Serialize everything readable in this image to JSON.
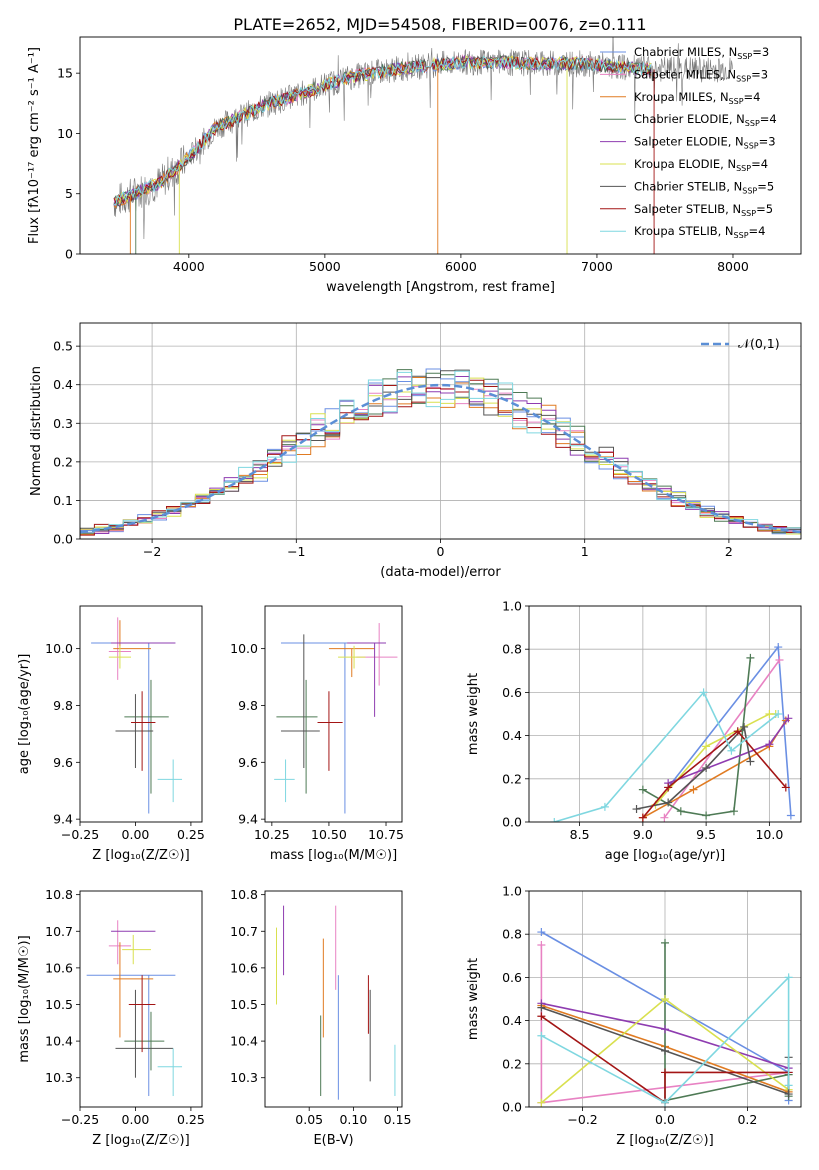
{
  "figure": {
    "title": "PLATE=2652, MJD=54508, FIBERID=0076, z=0.111"
  },
  "colors": {
    "Chabrier MILES": "#6a8fe3",
    "Salpeter MILES": "#e882c3",
    "Kroupa MILES": "#e07b22",
    "Chabrier ELODIE": "#4e7a55",
    "Salpeter ELODIE": "#8e3cb0",
    "Kroupa ELODIE": "#d9e04f",
    "Chabrier STELIB": "#545454",
    "Salpeter STELIB": "#a31515",
    "Kroupa STELIB": "#7fd7e0",
    "grid": "#b0b0b0",
    "normal_curve": "#5b8fd6"
  },
  "chart_data": [
    {
      "id": "spectrum",
      "type": "line",
      "title": "PLATE=2652, MJD=54508, FIBERID=0076, z=0.111",
      "xlabel": "wavelength [Angstrom, rest frame]",
      "ylabel": "Flux [fλ10⁻¹⁷ erg cm⁻² s⁻¹ A⁻¹]",
      "xlim": [
        3200,
        8500
      ],
      "ylim": [
        0,
        18
      ],
      "xticks": [
        "4000",
        "5000",
        "6000",
        "7000",
        "8000"
      ],
      "yticks": [
        "0",
        "5",
        "10",
        "15"
      ],
      "legend_position": "right",
      "legend": [
        {
          "model": "Chabrier MILES",
          "label": "Chabrier MILES, N",
          "sub": "SSP",
          "tail": "=3"
        },
        {
          "model": "Salpeter MILES",
          "label": "Salpeter MILES, N",
          "sub": "SSP",
          "tail": "=3"
        },
        {
          "model": "Kroupa MILES",
          "label": "Kroupa MILES, N",
          "sub": "SSP",
          "tail": "=4"
        },
        {
          "model": "Chabrier ELODIE",
          "label": "Chabrier ELODIE, N",
          "sub": "SSP",
          "tail": "=4"
        },
        {
          "model": "Salpeter ELODIE",
          "label": "Salpeter ELODIE, N",
          "sub": "SSP",
          "tail": "=3"
        },
        {
          "model": "Kroupa ELODIE",
          "label": "Kroupa ELODIE, N",
          "sub": "SSP",
          "tail": "=4"
        },
        {
          "model": "Chabrier STELIB",
          "label": "Chabrier STELIB, N",
          "sub": "SSP",
          "tail": "=5"
        },
        {
          "model": "Salpeter STELIB",
          "label": "Salpeter STELIB, N",
          "sub": "SSP",
          "tail": "=5"
        },
        {
          "model": "Kroupa STELIB",
          "label": "Kroupa STELIB, N",
          "sub": "SSP",
          "tail": "=4"
        }
      ],
      "continuum": {
        "x": [
          3450,
          3600,
          3800,
          4000,
          4200,
          4400,
          4600,
          4800,
          5000,
          5200,
          5500,
          5800,
          6000,
          6300,
          6600,
          6900,
          7200,
          7400
        ],
        "y": [
          4.3,
          5.0,
          6.0,
          8.0,
          10.5,
          11.5,
          12.5,
          13.2,
          14.0,
          14.7,
          15.3,
          15.7,
          15.9,
          15.9,
          15.8,
          15.8,
          15.5,
          15.3
        ]
      },
      "models_x_range": [
        3450,
        8000
      ]
    },
    {
      "id": "residuals",
      "type": "histogram",
      "xlabel": "(data-model)/error",
      "ylabel": "Normed distribution",
      "xlim": [
        -2.5,
        2.5
      ],
      "ylim": [
        0,
        0.56
      ],
      "xticks": [
        "−2",
        "−1",
        "0",
        "1",
        "2"
      ],
      "yticks": [
        "0.0",
        "0.1",
        "0.2",
        "0.3",
        "0.4",
        "0.5"
      ],
      "legend_position": "top-right",
      "legend": [
        {
          "label": "𝒩(0,1)"
        }
      ],
      "bin_width": 0.1,
      "reference_curve": "gaussian mean 0 sigma 1"
    },
    {
      "id": "age-vs-Z",
      "type": "scatter",
      "xlabel": "Z [log₁₀(Z/Z☉)]",
      "ylabel": "age  [log₁₀(age/yr)]",
      "xlim": [
        -0.25,
        0.3
      ],
      "ylim": [
        9.39,
        10.15
      ],
      "xticks": [
        "−0.25",
        "0.00",
        "0.25"
      ],
      "yticks": [
        "9.4",
        "9.6",
        "9.8",
        "10.0"
      ],
      "points": [
        {
          "model": "Chabrier MILES",
          "x": 0.06,
          "y": 10.02,
          "xerr": [
            0.26,
            0.12
          ],
          "yerr": [
            0.6,
            0.0
          ]
        },
        {
          "model": "Salpeter MILES",
          "x": -0.08,
          "y": 9.99,
          "xerr": [
            0.04,
            0.06
          ],
          "yerr": [
            0.1,
            0.12
          ]
        },
        {
          "model": "Kroupa MILES",
          "x": -0.07,
          "y": 10.0,
          "xerr": [
            0.03,
            0.14
          ],
          "yerr": [
            0.0,
            0.1
          ]
        },
        {
          "model": "Chabrier ELODIE",
          "x": 0.07,
          "y": 9.76,
          "xerr": [
            0.12,
            0.08
          ],
          "yerr": [
            0.27,
            0.13
          ]
        },
        {
          "model": "Salpeter ELODIE",
          "x": 0.0,
          "y": 10.02,
          "xerr": [
            0.11,
            0.18
          ],
          "yerr": [
            0.0,
            0.0
          ]
        },
        {
          "model": "Kroupa ELODIE",
          "x": -0.07,
          "y": 9.97,
          "xerr": [
            0.05,
            0.05
          ],
          "yerr": [
            0.04,
            0.04
          ]
        },
        {
          "model": "Chabrier STELIB",
          "x": 0.0,
          "y": 9.71,
          "xerr": [
            0.09,
            0.08
          ],
          "yerr": [
            0.13,
            0.13
          ]
        },
        {
          "model": "Salpeter STELIB",
          "x": 0.03,
          "y": 9.74,
          "xerr": [
            0.05,
            0.06
          ],
          "yerr": [
            0.17,
            0.11
          ]
        },
        {
          "model": "Kroupa STELIB",
          "x": 0.17,
          "y": 9.54,
          "xerr": [
            0.07,
            0.04
          ],
          "yerr": [
            0.08,
            0.07
          ]
        }
      ]
    },
    {
      "id": "age-vs-mass",
      "type": "scatter",
      "xlabel": "mass [log₁₀(M/M☉)]",
      "ylabel": "",
      "xlim": [
        10.22,
        10.82
      ],
      "ylim": [
        9.39,
        10.15
      ],
      "xticks": [
        "10.25",
        "10.50",
        "10.75"
      ],
      "yticks": [
        "9.4",
        "9.6",
        "9.8",
        "10.0"
      ],
      "points": [
        {
          "model": "Chabrier MILES",
          "x": 10.57,
          "y": 10.02,
          "xerr": [
            0.28,
            0.13
          ],
          "yerr": [
            0.6,
            0.0
          ]
        },
        {
          "model": "Salpeter MILES",
          "x": 10.72,
          "y": 9.97,
          "xerr": [
            0.1,
            0.08
          ],
          "yerr": [
            0.1,
            0.12
          ]
        },
        {
          "model": "Kroupa MILES",
          "x": 10.6,
          "y": 10.0,
          "xerr": [
            0.1,
            0.1
          ],
          "yerr": [
            0.1,
            0.0
          ]
        },
        {
          "model": "Chabrier ELODIE",
          "x": 10.4,
          "y": 9.76,
          "xerr": [
            0.13,
            0.05
          ],
          "yerr": [
            0.27,
            0.13
          ]
        },
        {
          "model": "Salpeter ELODIE",
          "x": 10.7,
          "y": 10.02,
          "xerr": [
            0.12,
            0.05
          ],
          "yerr": [
            0.26,
            0.0
          ]
        },
        {
          "model": "Kroupa ELODIE",
          "x": 10.61,
          "y": 9.97,
          "xerr": [
            0.07,
            0.05
          ],
          "yerr": [
            0.04,
            0.04
          ]
        },
        {
          "model": "Chabrier STELIB",
          "x": 10.39,
          "y": 9.71,
          "xerr": [
            0.1,
            0.07
          ],
          "yerr": [
            0.13,
            0.34
          ]
        },
        {
          "model": "Salpeter STELIB",
          "x": 10.5,
          "y": 9.74,
          "xerr": [
            0.05,
            0.06
          ],
          "yerr": [
            0.17,
            0.11
          ]
        },
        {
          "model": "Kroupa STELIB",
          "x": 10.31,
          "y": 9.54,
          "xerr": [
            0.05,
            0.04
          ],
          "yerr": [
            0.08,
            0.07
          ]
        }
      ]
    },
    {
      "id": "weight-vs-age",
      "type": "line",
      "xlabel": "age  [log₁₀(age/yr)]",
      "ylabel": "mass weight",
      "xlim": [
        8.1,
        10.25
      ],
      "ylim": [
        0.0,
        1.0
      ],
      "xticks": [
        "8.5",
        "9.0",
        "9.5",
        "10.0"
      ],
      "yticks": [
        "0.0",
        "0.2",
        "0.4",
        "0.6",
        "0.8",
        "1.0"
      ],
      "series": [
        {
          "model": "Chabrier MILES",
          "x": [
            9.2,
            10.07,
            10.17
          ],
          "y": [
            0.16,
            0.81,
            0.03
          ]
        },
        {
          "model": "Salpeter MILES",
          "x": [
            9.17,
            10.08
          ],
          "y": [
            0.02,
            0.75
          ]
        },
        {
          "model": "Kroupa MILES",
          "x": [
            9.0,
            9.4,
            10.0,
            10.13
          ],
          "y": [
            0.02,
            0.15,
            0.35,
            0.47
          ]
        },
        {
          "model": "Chabrier ELODIE",
          "x": [
            9.0,
            9.3,
            9.5,
            9.72,
            9.85
          ],
          "y": [
            0.15,
            0.05,
            0.03,
            0.05,
            0.76
          ]
        },
        {
          "model": "Salpeter ELODIE",
          "x": [
            9.2,
            10.0,
            10.15
          ],
          "y": [
            0.18,
            0.36,
            0.48
          ]
        },
        {
          "model": "Kroupa ELODIE",
          "x": [
            9.1,
            9.5,
            10.0,
            10.05
          ],
          "y": [
            0.08,
            0.35,
            0.5,
            0.5
          ]
        },
        {
          "model": "Chabrier STELIB",
          "x": [
            8.95,
            9.2,
            9.5,
            9.8,
            9.85
          ],
          "y": [
            0.06,
            0.09,
            0.25,
            0.44,
            0.28
          ]
        },
        {
          "model": "Salpeter STELIB",
          "x": [
            9.0,
            9.2,
            9.75,
            10.13
          ],
          "y": [
            0.02,
            0.16,
            0.42,
            0.16
          ]
        },
        {
          "model": "Kroupa STELIB",
          "x": [
            8.3,
            8.7,
            9.48,
            9.7,
            10.07
          ],
          "y": [
            0.0,
            0.07,
            0.6,
            0.33,
            0.5
          ]
        }
      ]
    },
    {
      "id": "mass-vs-Z",
      "type": "scatter",
      "xlabel": "Z [log₁₀(Z/Z☉)]",
      "ylabel": "mass [log₁₀(M/M☉)]",
      "xlim": [
        -0.25,
        0.3
      ],
      "ylim": [
        10.22,
        10.81
      ],
      "xticks": [
        "−0.25",
        "0.00",
        "0.25"
      ],
      "yticks": [
        "10.3",
        "10.4",
        "10.5",
        "10.6",
        "10.7",
        "10.8"
      ],
      "points": [
        {
          "model": "Chabrier MILES",
          "x": 0.06,
          "y": 10.58,
          "xerr": [
            0.28,
            0.12
          ],
          "yerr": [
            0.33,
            0.0
          ]
        },
        {
          "model": "Salpeter MILES",
          "x": -0.08,
          "y": 10.66,
          "xerr": [
            0.04,
            0.06
          ],
          "yerr": [
            0.05,
            0.07
          ]
        },
        {
          "model": "Kroupa MILES",
          "x": -0.07,
          "y": 10.57,
          "xerr": [
            0.03,
            0.15
          ],
          "yerr": [
            0.16,
            0.1
          ]
        },
        {
          "model": "Chabrier ELODIE",
          "x": 0.07,
          "y": 10.4,
          "xerr": [
            0.12,
            0.06
          ],
          "yerr": [
            0.08,
            0.08
          ]
        },
        {
          "model": "Salpeter ELODIE",
          "x": 0.0,
          "y": 10.7,
          "xerr": [
            0.11,
            0.09
          ],
          "yerr": [
            0.0,
            0.0
          ]
        },
        {
          "model": "Kroupa ELODIE",
          "x": -0.01,
          "y": 10.65,
          "xerr": [
            0.05,
            0.08
          ],
          "yerr": [
            0.04,
            0.04
          ]
        },
        {
          "model": "Chabrier STELIB",
          "x": 0.0,
          "y": 10.38,
          "xerr": [
            0.09,
            0.17
          ],
          "yerr": [
            0.08,
            0.16
          ]
        },
        {
          "model": "Salpeter STELIB",
          "x": 0.03,
          "y": 10.5,
          "xerr": [
            0.06,
            0.06
          ],
          "yerr": [
            0.13,
            0.08
          ]
        },
        {
          "model": "Kroupa STELIB",
          "x": 0.17,
          "y": 10.33,
          "xerr": [
            0.07,
            0.04
          ],
          "yerr": [
            0.08,
            0.05
          ]
        }
      ]
    },
    {
      "id": "mass-vs-ebv",
      "type": "scatter",
      "xlabel": "E(B-V)",
      "ylabel": "",
      "xlim": [
        0.0,
        0.155
      ],
      "ylim": [
        10.22,
        10.81
      ],
      "xticks": [
        "0.05",
        "0.10",
        "0.15"
      ],
      "yticks": [
        "10.3",
        "10.4",
        "10.5",
        "10.6",
        "10.7",
        "10.8"
      ],
      "points": [
        {
          "model": "Chabrier MILES",
          "x": 0.083,
          "y": 10.48,
          "xerr": [
            0.0,
            0.0
          ],
          "yerr": [
            0.24,
            0.1
          ]
        },
        {
          "model": "Salpeter MILES",
          "x": 0.08,
          "y": 10.67,
          "xerr": [
            0.0,
            0.0
          ],
          "yerr": [
            0.13,
            0.1
          ]
        },
        {
          "model": "Kroupa MILES",
          "x": 0.066,
          "y": 10.58,
          "xerr": [
            0.0,
            0.0
          ],
          "yerr": [
            0.17,
            0.1
          ]
        },
        {
          "model": "Chabrier ELODIE",
          "x": 0.063,
          "y": 10.36,
          "xerr": [
            0.0,
            0.0
          ],
          "yerr": [
            0.11,
            0.11
          ]
        },
        {
          "model": "Salpeter ELODIE",
          "x": 0.021,
          "y": 10.69,
          "xerr": [
            0.0,
            0.0
          ],
          "yerr": [
            0.11,
            0.08
          ]
        },
        {
          "model": "Kroupa ELODIE",
          "x": 0.013,
          "y": 10.6,
          "xerr": [
            0.0,
            0.0
          ],
          "yerr": [
            0.1,
            0.11
          ]
        },
        {
          "model": "Chabrier STELIB",
          "x": 0.119,
          "y": 10.38,
          "xerr": [
            0.0,
            0.0
          ],
          "yerr": [
            0.09,
            0.16
          ]
        },
        {
          "model": "Salpeter STELIB",
          "x": 0.117,
          "y": 10.5,
          "xerr": [
            0.0,
            0.0
          ],
          "yerr": [
            0.08,
            0.08
          ]
        },
        {
          "model": "Kroupa STELIB",
          "x": 0.147,
          "y": 10.3,
          "xerr": [
            0.0,
            0.0
          ],
          "yerr": [
            0.05,
            0.09
          ]
        }
      ]
    },
    {
      "id": "weight-vs-Z",
      "type": "line",
      "xlabel": "Z [log₁₀(Z/Z☉)]",
      "ylabel": "mass weight",
      "xlim": [
        -0.33,
        0.33
      ],
      "ylim": [
        0.0,
        1.0
      ],
      "xticks": [
        "−0.2",
        "0.0",
        "0.2"
      ],
      "yticks": [
        "0.0",
        "0.2",
        "0.4",
        "0.6",
        "0.8",
        "1.0"
      ],
      "series": [
        {
          "model": "Chabrier MILES",
          "x": [
            -0.3,
            0.3,
            0.3
          ],
          "y": [
            0.81,
            0.16,
            0.03
          ]
        },
        {
          "model": "Salpeter MILES",
          "x": [
            -0.3,
            -0.3,
            0.3
          ],
          "y": [
            0.75,
            0.02,
            0.16
          ]
        },
        {
          "model": "Kroupa MILES",
          "x": [
            -0.3,
            0.0,
            0.3
          ],
          "y": [
            0.47,
            0.28,
            0.07
          ]
        },
        {
          "model": "Chabrier ELODIE",
          "x": [
            0.0,
            0.0,
            0.3,
            0.3
          ],
          "y": [
            0.76,
            0.03,
            0.15,
            0.05
          ]
        },
        {
          "model": "Salpeter ELODIE",
          "x": [
            -0.3,
            0.0,
            0.3
          ],
          "y": [
            0.48,
            0.36,
            0.18
          ]
        },
        {
          "model": "Kroupa ELODIE",
          "x": [
            -0.3,
            0.0,
            0.3
          ],
          "y": [
            0.02,
            0.5,
            0.08
          ]
        },
        {
          "model": "Chabrier STELIB",
          "x": [
            -0.3,
            0.0,
            0.3,
            0.3
          ],
          "y": [
            0.46,
            0.26,
            0.06,
            0.23
          ]
        },
        {
          "model": "Salpeter STELIB",
          "x": [
            -0.3,
            0.0,
            0.0,
            0.3
          ],
          "y": [
            0.42,
            0.02,
            0.16,
            0.16
          ]
        },
        {
          "model": "Kroupa STELIB",
          "x": [
            -0.3,
            0.0,
            0.3,
            0.3
          ],
          "y": [
            0.33,
            0.02,
            0.6,
            0.1
          ]
        }
      ]
    }
  ]
}
